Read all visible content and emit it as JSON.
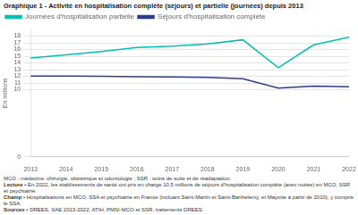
{
  "chart_data": {
    "type": "line",
    "title": "Graphique 1 - Activité en hospitalisation complète (séjours) et partielle (journées) depuis 2013",
    "ylabel": "En millions",
    "x": [
      2013,
      2014,
      2015,
      2016,
      2017,
      2018,
      2019,
      2020,
      2021,
      2022
    ],
    "series": [
      {
        "name": "Journées d'hospitalisation partielle",
        "color": "#00c0b0",
        "values": [
          14.75,
          15.2,
          15.7,
          16.3,
          16.5,
          16.85,
          17.45,
          13.3,
          16.7,
          17.85
        ]
      },
      {
        "name": "Séjours d'hospitalisation complète",
        "color": "#2c3e8c",
        "values": [
          12.05,
          12.05,
          12.0,
          11.95,
          11.9,
          11.85,
          11.65,
          10.25,
          10.55,
          10.45
        ]
      }
    ],
    "xlim": [
      2013,
      2022
    ],
    "xticks": [
      2013,
      2014,
      2015,
      2016,
      2017,
      2018,
      2019,
      2020,
      2021,
      2022
    ],
    "ylim": [
      0,
      19
    ],
    "yticks": [
      0,
      10,
      11,
      12,
      13,
      14,
      15,
      16,
      17,
      18
    ],
    "grid": "y",
    "legend": "top",
    "annotations": [
      "MCO : médecine, chirurgie, obstétrique et odontologie ; SSR : soins de suite et de réadaptation.",
      "Lecture • En 2022, les établissements de santé ont pris en charge 10,5 millions de séjours d'hospitalisation complète (avec nuitée) en MCO, SSR",
      "et psychiatrie.",
      "Champ • Hospitalisations en MCO, SSA et psychiatrie en France (incluant Saint-Martin et Saint-Barthélemy, et Mayotte à partir de 2010), y compris le SSA.",
      "Sources • DREES, SAE 2013-2022, ATIH, PMSI-MCO et SSR, traitements DREES."
    ]
  }
}
